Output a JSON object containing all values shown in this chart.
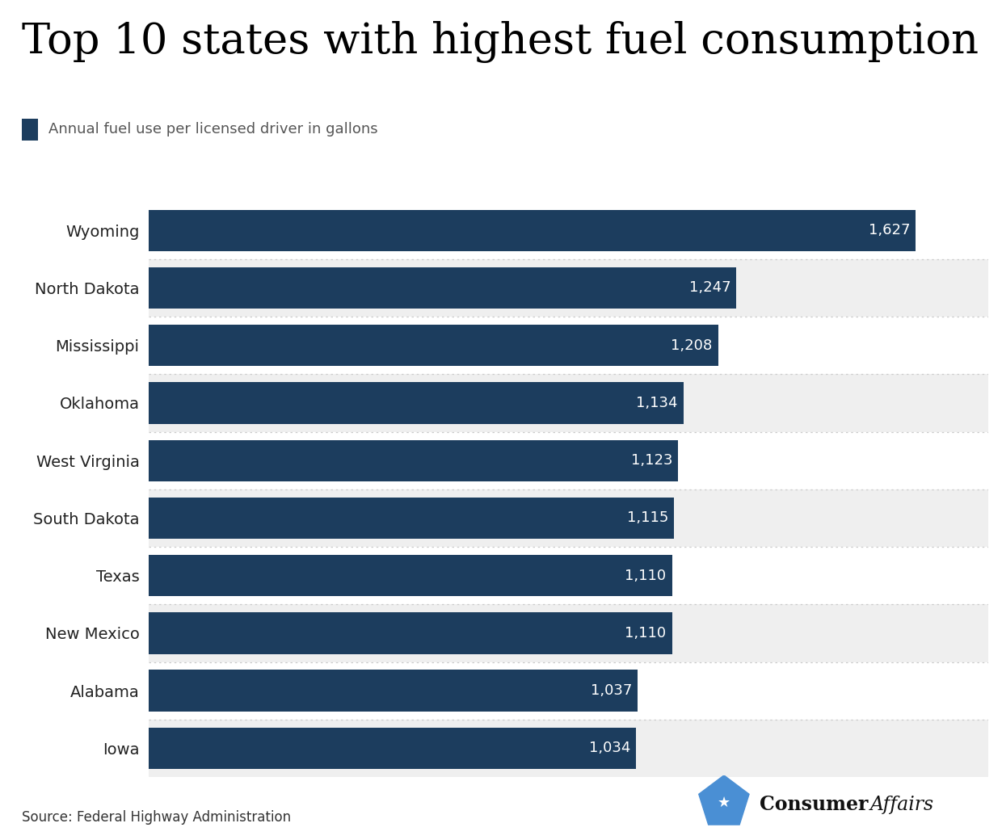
{
  "title": "Top 10 states with highest fuel consumption",
  "legend_label": "Annual fuel use per licensed driver in gallons",
  "states": [
    "Wyoming",
    "North Dakota",
    "Mississippi",
    "Oklahoma",
    "West Virginia",
    "South Dakota",
    "Texas",
    "New Mexico",
    "Alabama",
    "Iowa"
  ],
  "values": [
    1627,
    1247,
    1208,
    1134,
    1123,
    1115,
    1110,
    1110,
    1037,
    1034
  ],
  "bar_color": "#1c3d5e",
  "bg_colors": [
    "#ffffff",
    "#efefef",
    "#ffffff",
    "#efefef",
    "#ffffff",
    "#efefef",
    "#ffffff",
    "#efefef",
    "#ffffff",
    "#efefef"
  ],
  "label_color": "#ffffff",
  "title_color": "#000000",
  "source_text": "Source: Federal Highway Administration",
  "source_color": "#333333",
  "legend_square_color": "#1c3d5e",
  "legend_text_color": "#555555",
  "title_fontsize": 38,
  "legend_fontsize": 13,
  "bar_label_fontsize": 13,
  "state_label_fontsize": 14,
  "source_fontsize": 12,
  "xlim_max": 1780,
  "bar_height": 0.72,
  "separator_color": "#cccccc",
  "logo_color": "#4a8fd4",
  "consumer_bold_color": "#111111",
  "affairs_color": "#111111"
}
